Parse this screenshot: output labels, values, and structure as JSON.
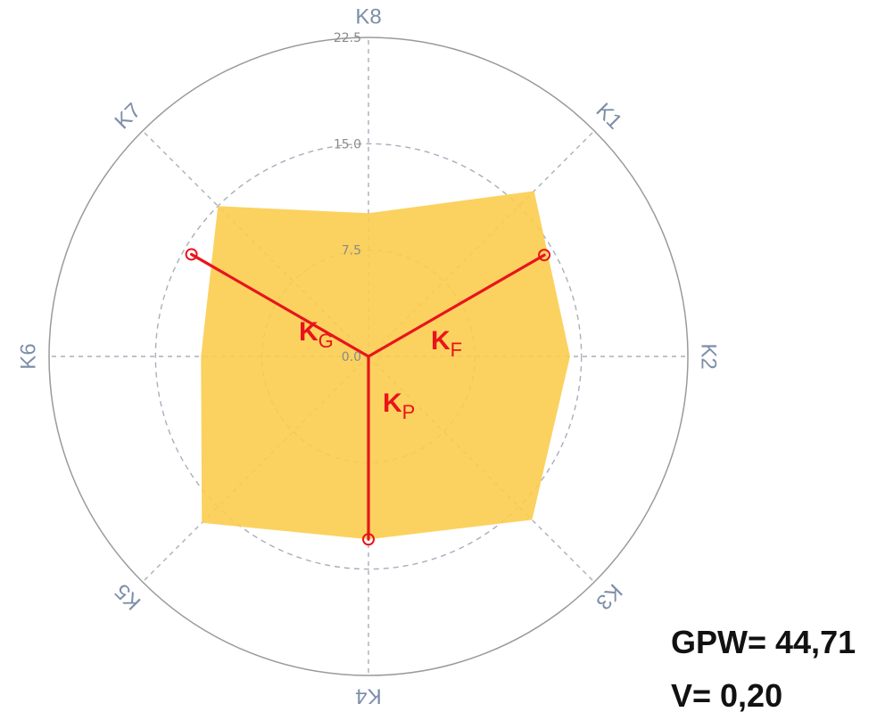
{
  "chart_data": {
    "type": "radar",
    "axes": [
      "K1",
      "K2",
      "K3",
      "K4",
      "K5",
      "K6",
      "K7",
      "K8"
    ],
    "values": [
      16.5,
      14.2,
      16.3,
      12.9,
      16.6,
      11.8,
      15.0,
      10.1
    ],
    "rticks": [
      "0.0",
      "7.5",
      "15.0",
      "22.5"
    ],
    "rlim": [
      0,
      22.5
    ],
    "grid": true,
    "fill_color": "#fbcd4f",
    "vector_color": "#e8141b",
    "vectors": [
      {
        "main": "K",
        "sub": "F",
        "angle_deg": 60,
        "value": 14.3
      },
      {
        "main": "K",
        "sub": "P",
        "angle_deg": 180,
        "value": 12.9
      },
      {
        "main": "K",
        "sub": "G",
        "angle_deg": 300,
        "value": 14.4
      }
    ]
  },
  "stats": {
    "gpw": "GPW= 44,71",
    "v": "V= 0,20"
  }
}
